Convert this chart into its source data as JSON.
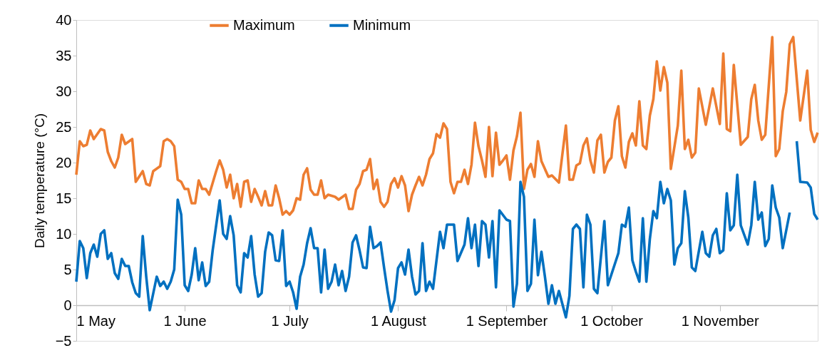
{
  "chart_data": {
    "type": "line",
    "ylabel": "Daily temperature (°C)",
    "ylim": [
      -5,
      40
    ],
    "yticks": [
      -5,
      0,
      5,
      10,
      15,
      20,
      25,
      30,
      35,
      40
    ],
    "xlim": [
      "--05-01",
      "--11-29"
    ],
    "xticks": [
      {
        "value": "--05-01",
        "label": "1 May"
      },
      {
        "value": "--06-01",
        "label": "1 June"
      },
      {
        "value": "--07-01",
        "label": "1 July"
      },
      {
        "value": "--08-01",
        "label": "1 August"
      },
      {
        "value": "--09-01",
        "label": "1 September"
      },
      {
        "value": "--10-01",
        "label": "1 October"
      },
      {
        "value": "--11-01",
        "label": "1 November"
      }
    ],
    "grid": false,
    "legend": "top",
    "marker": "none",
    "line_style": "solid",
    "series": [
      {
        "name": "Maximum",
        "color": "#ed7d31",
        "x": [
          "--05-01",
          "--05-02",
          "--05-03",
          "--05-04",
          "--05-05",
          "--05-06",
          "--05-08",
          "--05-09",
          "--05-10",
          "--05-11",
          "--05-12",
          "--05-13",
          "--05-14",
          "--05-15",
          "--05-17",
          "--05-18",
          "--05-20",
          "--05-21",
          "--05-22",
          "--05-23",
          "--05-25",
          "--05-26",
          "--05-27",
          "--05-28",
          "--05-29",
          "--05-30",
          "--05-31",
          "--06-01",
          "--06-02",
          "--06-03",
          "--06-04",
          "--06-05",
          "--06-06",
          "--06-07",
          "--06-08",
          "--06-10",
          "--06-11",
          "--06-12",
          "--06-13",
          "--06-14",
          "--06-15",
          "--06-16",
          "--06-17",
          "--06-18",
          "--06-19",
          "--06-20",
          "--06-21",
          "--06-22",
          "--06-23",
          "--06-24",
          "--06-25",
          "--06-26",
          "--06-27",
          "--06-28",
          "--06-29",
          "--06-30",
          "--07-01",
          "--07-02",
          "--07-03",
          "--07-04",
          "--07-05",
          "--07-06",
          "--07-07",
          "--07-08",
          "--07-09",
          "--07-10",
          "--07-11",
          "--07-12",
          "--07-14",
          "--07-15",
          "--07-17",
          "--07-18",
          "--07-19",
          "--07-20",
          "--07-21",
          "--07-22",
          "--07-23",
          "--07-24",
          "--07-25",
          "--07-26",
          "--07-27",
          "--07-28",
          "--07-29",
          "--07-30",
          "--07-31",
          "--08-01",
          "--08-02",
          "--08-03",
          "--08-04",
          "--08-05",
          "--08-06",
          "--08-07",
          "--08-08",
          "--08-09",
          "--08-10",
          "--08-11",
          "--08-12",
          "--08-13",
          "--08-14",
          "--08-15",
          "--08-16",
          "--08-17",
          "--08-18",
          "--08-19",
          "--08-20",
          "--08-21",
          "--08-22",
          "--08-23",
          "--08-24",
          "--08-25",
          "--08-26",
          "--08-27",
          "--08-28",
          "--08-29",
          "--08-30",
          "--08-31",
          "--09-01",
          "--09-02",
          "--09-03",
          "--09-04",
          "--09-05",
          "--09-06",
          "--09-07",
          "--09-08",
          "--09-09",
          "--09-10",
          "--09-11",
          "--09-13",
          "--09-14",
          "--09-16",
          "--09-18",
          "--09-19",
          "--09-20",
          "--09-21",
          "--09-22",
          "--09-23",
          "--09-24",
          "--09-25",
          "--09-26",
          "--09-27",
          "--09-28",
          "--09-29",
          "--09-30",
          "--10-01",
          "--10-02",
          "--10-03",
          "--10-04",
          "--10-05",
          "--10-06",
          "--10-07",
          "--10-08",
          "--10-09",
          "--10-10",
          "--10-11",
          "--10-12",
          "--10-13",
          "--10-14",
          "--10-15",
          "--10-16",
          "--10-17",
          "--10-18",
          "--10-20",
          "--10-21",
          "--10-22",
          "--10-23",
          "--10-24",
          "--10-25",
          "--10-26",
          "--10-28",
          "--10-30",
          "--11-01",
          "--11-02",
          "--11-03",
          "--11-04",
          "--11-05",
          "--11-07",
          "--11-09",
          "--11-10",
          "--11-11",
          "--11-12",
          "--11-13",
          "--11-14",
          "--11-16",
          "--11-17",
          "--11-18",
          "--11-19",
          "--11-20",
          "--11-21",
          "--11-22",
          "--11-24",
          "--11-26",
          "--11-27",
          "--11-28",
          "--11-29"
        ],
        "values": [
          18.3,
          23.0,
          22.3,
          22.5,
          24.5,
          23.3,
          24.7,
          24.5,
          21.5,
          20.2,
          19.3,
          20.7,
          23.9,
          22.6,
          23.3,
          17.3,
          18.8,
          17.0,
          16.8,
          18.8,
          19.5,
          23.0,
          23.3,
          23.0,
          22.3,
          17.6,
          17.3,
          16.3,
          16.3,
          14.3,
          14.3,
          17.5,
          16.3,
          16.3,
          15.5,
          18.8,
          20.3,
          19.0,
          16.5,
          18.3,
          15.0,
          17.0,
          13.8,
          17.3,
          17.5,
          14.5,
          16.3,
          15.2,
          14.0,
          16.0,
          14.0,
          14.0,
          16.8,
          15.0,
          12.7,
          13.2,
          12.7,
          13.3,
          15.0,
          14.8,
          18.3,
          19.2,
          16.2,
          15.5,
          15.5,
          17.5,
          15.0,
          15.5,
          15.2,
          14.8,
          15.5,
          13.5,
          13.5,
          16.2,
          17.0,
          18.8,
          19.0,
          20.5,
          16.3,
          17.6,
          14.5,
          13.8,
          14.5,
          17.0,
          17.8,
          16.5,
          18.1,
          16.8,
          13.2,
          15.5,
          16.8,
          18.0,
          16.8,
          18.3,
          20.5,
          21.3,
          24.0,
          23.5,
          25.5,
          24.7,
          17.3,
          15.7,
          17.3,
          17.3,
          19.0,
          17.0,
          19.7,
          25.6,
          22.3,
          20.3,
          18.0,
          25.0,
          18.1,
          24.2,
          19.7,
          20.3,
          21.0,
          17.6,
          21.7,
          23.7,
          27.0,
          16.3,
          19.0,
          19.8,
          18.0,
          23.0,
          20.2,
          18.0,
          18.2,
          17.2,
          25.2,
          17.6,
          17.6,
          19.6,
          19.9,
          22.4,
          23.4,
          20.3,
          18.6,
          23.1,
          23.9,
          18.6,
          20.1,
          20.7,
          25.9,
          27.9,
          20.9,
          19.3,
          22.9,
          24.1,
          22.4,
          28.6,
          22.4,
          21.9,
          26.6,
          28.9,
          34.2,
          30.1,
          33.4,
          31.2,
          19.1,
          25.2,
          32.9,
          21.9,
          23.2,
          20.7,
          21.4,
          30.4,
          25.3,
          30.4,
          25.4,
          35.3,
          24.7,
          24.4,
          33.7,
          22.5,
          23.6,
          28.9,
          30.9,
          25.9,
          23.2,
          23.9,
          37.6,
          20.9,
          21.9,
          27.2,
          29.9,
          36.6,
          37.6,
          25.9,
          32.9,
          24.6,
          22.9,
          24.2
        ]
      },
      {
        "name": "Minimum",
        "color": "#0070c0",
        "x": [
          "--05-01",
          "--05-02",
          "--05-03",
          "--05-04",
          "--05-05",
          "--05-06",
          "--05-07",
          "--05-08",
          "--05-09",
          "--05-10",
          "--05-11",
          "--05-12",
          "--05-13",
          "--05-14",
          "--05-15",
          "--05-16",
          "--05-17",
          "--05-18",
          "--05-19",
          "--05-20",
          "--05-21",
          "--05-22",
          "--05-24",
          "--05-25",
          "--05-26",
          "--05-27",
          "--05-28",
          "--05-29",
          "--05-30",
          "--05-31",
          "--06-01",
          "--06-02",
          "--06-03",
          "--06-04",
          "--06-05",
          "--06-06",
          "--06-07",
          "--06-08",
          "--06-09",
          "--06-11",
          "--06-12",
          "--06-13",
          "--06-14",
          "--06-15",
          "--06-16",
          "--06-17",
          "--06-18",
          "--06-19",
          "--06-20",
          "--06-21",
          "--06-22",
          "--06-23",
          "--06-24",
          "--06-25",
          "--06-26",
          "--06-27",
          "--06-28",
          "--06-29",
          "--06-30",
          "--07-01",
          "--07-02",
          "--07-03",
          "--07-04",
          "--07-05",
          "--07-06",
          "--07-07",
          "--07-08",
          "--07-09",
          "--07-10",
          "--07-11",
          "--07-12",
          "--07-13",
          "--07-14",
          "--07-15",
          "--07-16",
          "--07-17",
          "--07-18",
          "--07-19",
          "--07-20",
          "--07-21",
          "--07-22",
          "--07-23",
          "--07-24",
          "--07-25",
          "--07-26",
          "--07-27",
          "--07-28",
          "--07-29",
          "--07-30",
          "--07-31",
          "--08-01",
          "--08-02",
          "--08-03",
          "--08-04",
          "--08-05",
          "--08-06",
          "--08-07",
          "--08-08",
          "--08-09",
          "--08-10",
          "--08-11",
          "--08-13",
          "--08-14",
          "--08-15",
          "--08-17",
          "--08-18",
          "--08-20",
          "--08-21",
          "--08-22",
          "--08-23",
          "--08-24",
          "--08-25",
          "--08-26",
          "--08-27",
          "--08-28",
          "--08-29",
          "--08-30",
          "--09-01",
          "--09-02",
          "--09-03",
          "--09-04",
          "--09-05",
          "--09-06",
          "--09-07",
          "--09-08",
          "--09-09",
          "--09-10",
          "--09-11",
          "--09-12",
          "--09-13",
          "--09-14",
          "--09-15",
          "--09-16",
          "--09-18",
          "--09-19",
          "--09-20",
          "--09-21",
          "--09-22",
          "--09-23",
          "--09-24",
          "--09-25",
          "--09-26",
          "--09-27",
          "--09-29",
          "--09-30",
          "--10-01",
          "--10-03",
          "--10-04",
          "--10-05",
          "--10-06",
          "--10-07",
          "--10-08",
          "--10-09",
          "--10-10",
          "--10-11",
          "--10-12",
          "--10-13",
          "--10-14",
          "--10-15",
          "--10-16",
          "--10-17",
          "--10-18",
          "--10-19",
          "--10-20",
          "--10-21",
          "--10-22",
          "--10-23",
          "--10-24",
          "--10-25",
          "--10-27",
          "--10-28",
          "--10-29",
          "--10-30",
          "--10-31",
          "--11-01",
          "--11-02",
          "--11-03",
          "--11-04",
          "--11-05",
          "--11-06",
          "--11-07",
          "--11-09",
          "--11-10",
          "--11-11",
          "--11-12",
          "--11-13",
          "--11-14",
          "--11-15",
          "--11-16",
          "--11-17",
          "--11-18",
          "--11-19",
          "--11-21",
          "--11-22",
          "--11-23",
          "--11-24",
          "--11-26",
          "--11-27",
          "--11-28",
          "--11-29"
        ],
        "values": [
          3.3,
          9.0,
          8.0,
          3.8,
          7.3,
          8.5,
          6.8,
          10.0,
          10.5,
          6.5,
          7.3,
          4.5,
          3.7,
          6.5,
          5.5,
          5.5,
          3.2,
          1.7,
          1.2,
          9.7,
          4.0,
          -0.7,
          4.0,
          2.7,
          3.3,
          2.3,
          3.3,
          5.0,
          14.8,
          12.7,
          2.8,
          2.0,
          4.3,
          8.0,
          3.5,
          6.0,
          2.7,
          3.3,
          7.7,
          14.7,
          10.0,
          9.3,
          12.5,
          9.8,
          2.8,
          1.8,
          7.3,
          6.7,
          9.7,
          4.3,
          1.2,
          1.7,
          7.5,
          10.2,
          9.8,
          6.3,
          6.2,
          10.5,
          2.7,
          3.3,
          1.8,
          -0.5,
          4.0,
          5.7,
          8.7,
          10.8,
          8.0,
          8.0,
          1.8,
          7.8,
          2.3,
          3.3,
          5.7,
          2.8,
          4.8,
          2.0,
          4.0,
          8.8,
          9.8,
          7.7,
          5.3,
          5.2,
          11.0,
          8.0,
          8.3,
          8.8,
          5.3,
          2.0,
          -0.9,
          0.7,
          5.2,
          6.0,
          4.3,
          7.8,
          4.0,
          1.5,
          2.0,
          8.7,
          2.0,
          3.3,
          2.3,
          10.3,
          8.0,
          11.3,
          11.3,
          6.2,
          8.5,
          12.2,
          8.0,
          11.3,
          5.5,
          11.8,
          11.3,
          6.7,
          11.8,
          2.5,
          13.3,
          12.0,
          11.8,
          -0.2,
          3.0,
          17.3,
          15.2,
          2.0,
          3.0,
          12.0,
          4.2,
          7.5,
          4.0,
          0.2,
          2.8,
          0.2,
          2.0,
          -1.7,
          1.3,
          10.7,
          11.3,
          10.7,
          2.5,
          12.7,
          11.3,
          2.3,
          1.7,
          11.8,
          2.8,
          4.3,
          7.3,
          11.3,
          11.0,
          13.7,
          6.3,
          4.7,
          3.3,
          12.2,
          3.3,
          9.3,
          13.2,
          12.2,
          17.3,
          14.3,
          16.3,
          14.7,
          5.7,
          8.0,
          8.7,
          16.0,
          12.3,
          5.3,
          4.8,
          10.3,
          7.3,
          6.8,
          9.8,
          10.7,
          7.3,
          7.7,
          15.7,
          10.5,
          11.2,
          18.3,
          11.2,
          8.5,
          11.2,
          17.3,
          12.0,
          13.0,
          8.3,
          9.3,
          16.8,
          13.7,
          12.3,
          8.0,
          13.0,
          null,
          23.0,
          17.3,
          17.2,
          16.5,
          12.8,
          12.0
        ]
      }
    ]
  }
}
